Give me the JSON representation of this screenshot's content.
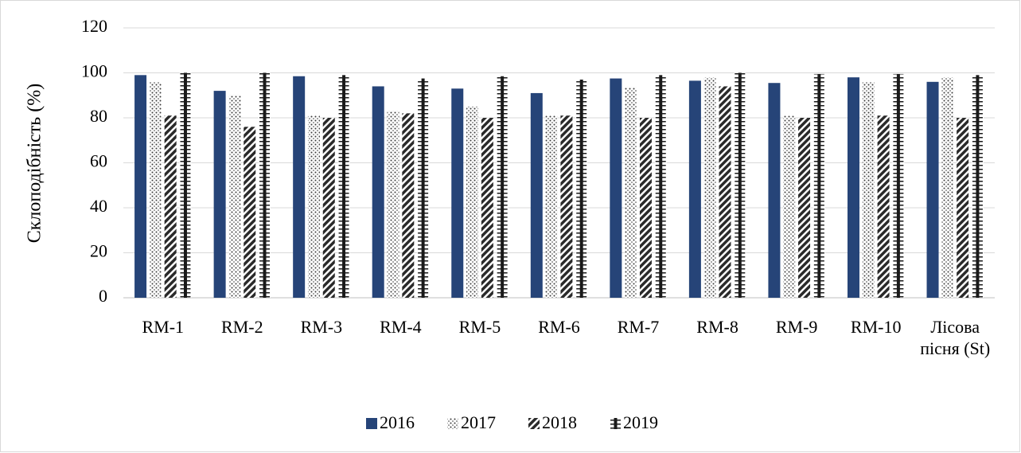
{
  "chart_data": {
    "type": "bar",
    "ylabel": "Склоподібність (%)",
    "categories": [
      "RM-1",
      "RM-2",
      "RM-3",
      "RM-4",
      "RM-5",
      "RM-6",
      "RM-7",
      "RM-8",
      "RM-9",
      "RM-10",
      "Лісова пісня (St)"
    ],
    "series": [
      {
        "name": "2016",
        "color": "#264478",
        "pattern": "solid",
        "values": [
          99,
          92,
          98.5,
          94,
          93,
          91,
          97.5,
          96.5,
          95.5,
          98,
          96
        ]
      },
      {
        "name": "2017",
        "color": "#3a3a3a",
        "pattern": "dots",
        "values": [
          96,
          90,
          81,
          83,
          85,
          81,
          93.5,
          98,
          81,
          96,
          98
        ]
      },
      {
        "name": "2018",
        "color": "#2a2a2a",
        "pattern": "diagonal",
        "values": [
          81,
          76,
          80,
          82,
          80,
          81,
          80,
          94,
          80,
          81,
          80
        ]
      },
      {
        "name": "2019",
        "color": "#1a1a1a",
        "pattern": "cross",
        "values": [
          100,
          100,
          99,
          97.5,
          98.5,
          97,
          99,
          100,
          99.5,
          99.5,
          99
        ]
      }
    ],
    "ylim": [
      0,
      120
    ],
    "yticks": [
      0,
      20,
      40,
      60,
      80,
      100,
      120
    ],
    "grid": true,
    "legend": "bottom"
  }
}
